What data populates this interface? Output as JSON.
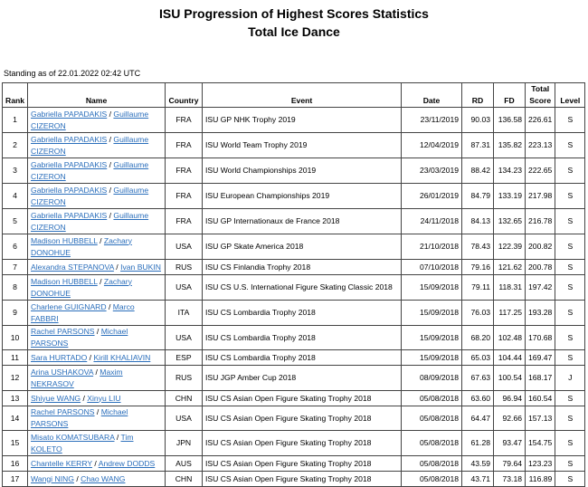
{
  "title": "ISU Progression of Highest Scores Statistics",
  "subtitle": "Total Ice Dance",
  "standing": "Standing as of 22.01.2022 02:42 UTC",
  "headers": {
    "rank": "Rank",
    "name": "Name",
    "country": "Country",
    "event": "Event",
    "date": "Date",
    "rd": "RD",
    "fd": "FD",
    "total": "Total Score",
    "level": "Level"
  },
  "rows": [
    {
      "rank": "1",
      "p1": "Gabriella PAPADAKIS",
      "p2": "Guillaume CIZERON",
      "country": "FRA",
      "event": "ISU GP NHK Trophy 2019",
      "date": "23/11/2019",
      "rd": "90.03",
      "fd": "136.58",
      "total": "226.61",
      "level": "S"
    },
    {
      "rank": "2",
      "p1": "Gabriella PAPADAKIS",
      "p2": "Guillaume CIZERON",
      "country": "FRA",
      "event": "ISU World Team Trophy 2019",
      "date": "12/04/2019",
      "rd": "87.31",
      "fd": "135.82",
      "total": "223.13",
      "level": "S"
    },
    {
      "rank": "3",
      "p1": "Gabriella PAPADAKIS",
      "p2": "Guillaume CIZERON",
      "country": "FRA",
      "event": "ISU World Championships 2019",
      "date": "23/03/2019",
      "rd": "88.42",
      "fd": "134.23",
      "total": "222.65",
      "level": "S"
    },
    {
      "rank": "4",
      "p1": "Gabriella PAPADAKIS",
      "p2": "Guillaume CIZERON",
      "country": "FRA",
      "event": "ISU European Championships 2019",
      "date": "26/01/2019",
      "rd": "84.79",
      "fd": "133.19",
      "total": "217.98",
      "level": "S"
    },
    {
      "rank": "5",
      "p1": "Gabriella PAPADAKIS",
      "p2": "Guillaume CIZERON",
      "country": "FRA",
      "event": "ISU GP Internationaux de France 2018",
      "date": "24/11/2018",
      "rd": "84.13",
      "fd": "132.65",
      "total": "216.78",
      "level": "S"
    },
    {
      "rank": "6",
      "p1": "Madison HUBBELL",
      "p2": "Zachary DONOHUE",
      "country": "USA",
      "event": "ISU GP Skate America 2018",
      "date": "21/10/2018",
      "rd": "78.43",
      "fd": "122.39",
      "total": "200.82",
      "level": "S"
    },
    {
      "rank": "7",
      "p1": "Alexandra STEPANOVA",
      "p2": "Ivan BUKIN",
      "country": "RUS",
      "event": "ISU CS Finlandia Trophy 2018",
      "date": "07/10/2018",
      "rd": "79.16",
      "fd": "121.62",
      "total": "200.78",
      "level": "S"
    },
    {
      "rank": "8",
      "p1": "Madison HUBBELL",
      "p2": "Zachary DONOHUE",
      "country": "USA",
      "event": "ISU CS U.S. International Figure Skating Classic 2018",
      "date": "15/09/2018",
      "rd": "79.11",
      "fd": "118.31",
      "total": "197.42",
      "level": "S"
    },
    {
      "rank": "9",
      "p1": "Charlene GUIGNARD",
      "p2": "Marco FABBRI",
      "country": "ITA",
      "event": "ISU CS Lombardia Trophy 2018",
      "date": "15/09/2018",
      "rd": "76.03",
      "fd": "117.25",
      "total": "193.28",
      "level": "S"
    },
    {
      "rank": "10",
      "p1": "Rachel PARSONS",
      "p2": "Michael PARSONS",
      "country": "USA",
      "event": "ISU CS Lombardia Trophy 2018",
      "date": "15/09/2018",
      "rd": "68.20",
      "fd": "102.48",
      "total": "170.68",
      "level": "S"
    },
    {
      "rank": "11",
      "p1": "Sara HURTADO",
      "p2": "Kirill KHALIAVIN",
      "country": "ESP",
      "event": "ISU CS Lombardia Trophy 2018",
      "date": "15/09/2018",
      "rd": "65.03",
      "fd": "104.44",
      "total": "169.47",
      "level": "S"
    },
    {
      "rank": "12",
      "p1": "Arina USHAKOVA",
      "p2": "Maxim NEKRASOV",
      "country": "RUS",
      "event": "ISU JGP Amber Cup 2018",
      "date": "08/09/2018",
      "rd": "67.63",
      "fd": "100.54",
      "total": "168.17",
      "level": "J"
    },
    {
      "rank": "13",
      "p1": "Shiyue WANG",
      "p2": "Xinyu LIU",
      "country": "CHN",
      "event": "ISU CS Asian Open Figure Skating Trophy 2018",
      "date": "05/08/2018",
      "rd": "63.60",
      "fd": "96.94",
      "total": "160.54",
      "level": "S"
    },
    {
      "rank": "14",
      "p1": "Rachel PARSONS",
      "p2": "Michael PARSONS",
      "country": "USA",
      "event": "ISU CS Asian Open Figure Skating Trophy 2018",
      "date": "05/08/2018",
      "rd": "64.47",
      "fd": "92.66",
      "total": "157.13",
      "level": "S"
    },
    {
      "rank": "15",
      "p1": "Misato KOMATSUBARA",
      "p2": "Tim KOLETO",
      "country": "JPN",
      "event": "ISU CS Asian Open Figure Skating Trophy 2018",
      "date": "05/08/2018",
      "rd": "61.28",
      "fd": "93.47",
      "total": "154.75",
      "level": "S"
    },
    {
      "rank": "16",
      "p1": "Chantelle KERRY",
      "p2": "Andrew DODDS",
      "country": "AUS",
      "event": "ISU CS Asian Open Figure Skating Trophy 2018",
      "date": "05/08/2018",
      "rd": "43.59",
      "fd": "79.64",
      "total": "123.23",
      "level": "S"
    },
    {
      "rank": "17",
      "p1": "Wangi NING",
      "p2": "Chao WANG",
      "country": "CHN",
      "event": "ISU CS Asian Open Figure Skating Trophy 2018",
      "date": "05/08/2018",
      "rd": "43.71",
      "fd": "73.18",
      "total": "116.89",
      "level": "S"
    }
  ]
}
